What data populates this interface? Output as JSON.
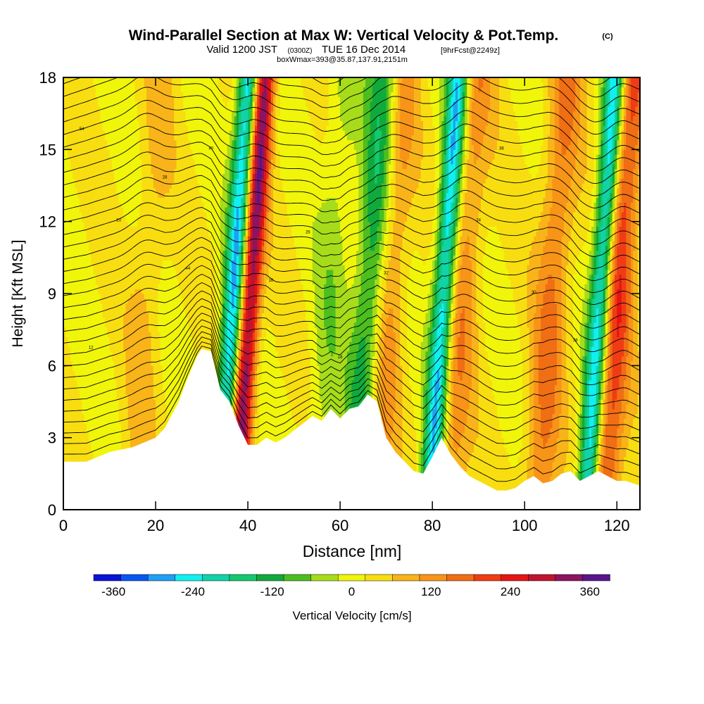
{
  "header": {
    "title": "Wind-Parallel Section at Max W: Vertical Velocity & Pot.Temp.",
    "title_mark": "(C)",
    "valid_prefix": "Valid 1200 JST",
    "valid_utc": "(0300Z)",
    "valid_date": "TUE 16 Dec 2014",
    "forecast": "[9hrFcst@2249z]",
    "boxwmax": "boxWmax=393@35.87,137.91,2151m"
  },
  "chart_data": {
    "type": "heatmap",
    "xlabel": "Distance [nm]",
    "ylabel": "Height [Kft MSL]",
    "xlim": [
      0,
      125
    ],
    "ylim": [
      0,
      18
    ],
    "x_ticks": [
      "0",
      "20",
      "40",
      "60",
      "80",
      "100",
      "120"
    ],
    "y_ticks": [
      "0",
      "3",
      "6",
      "9",
      "12",
      "15",
      "18"
    ],
    "x_tick_values": [
      0,
      20,
      40,
      60,
      80,
      100,
      120
    ],
    "y_tick_values": [
      0,
      3,
      6,
      9,
      12,
      15,
      18
    ],
    "terrain": {
      "x": [
        0,
        5,
        10,
        15,
        20,
        22,
        25,
        27,
        29,
        30,
        32,
        34,
        36,
        38,
        40,
        42,
        44,
        46,
        48,
        50,
        52,
        54,
        56,
        58,
        60,
        62,
        64,
        66,
        68,
        70,
        72,
        74,
        76,
        78,
        80,
        82,
        84,
        86,
        88,
        90,
        92,
        94,
        96,
        98,
        100,
        102,
        104,
        106,
        108,
        110,
        112,
        114,
        116,
        118,
        120,
        122,
        125
      ],
      "height_kft": [
        2.0,
        2.0,
        2.4,
        2.6,
        3.0,
        3.4,
        4.5,
        5.5,
        6.4,
        6.7,
        6.6,
        5.0,
        4.5,
        3.5,
        2.7,
        2.7,
        3.0,
        2.8,
        3.0,
        3.3,
        3.6,
        3.9,
        3.7,
        4.2,
        3.8,
        4.2,
        4.3,
        4.8,
        4.5,
        3.0,
        2.4,
        2.0,
        1.6,
        1.5,
        2.2,
        3.0,
        2.3,
        1.8,
        1.4,
        1.2,
        1.0,
        0.8,
        0.8,
        0.9,
        1.2,
        1.4,
        1.1,
        1.2,
        1.5,
        1.6,
        1.2,
        1.4,
        1.6,
        1.4,
        1.2,
        1.2,
        1.0
      ]
    },
    "w_max_cm_s": 393,
    "updrafts": [
      {
        "x": 40.5,
        "w": 330
      },
      {
        "x": 18,
        "w": 50
      },
      {
        "x": 70,
        "w": 150
      },
      {
        "x": 86.5,
        "w": 110
      },
      {
        "x": 106,
        "w": 130
      },
      {
        "x": 120,
        "w": 200
      }
    ],
    "downdrafts": [
      {
        "x": 37.0,
        "w": -300
      },
      {
        "x": 67,
        "w": -200
      },
      {
        "x": 82.5,
        "w": -300
      },
      {
        "x": 116.5,
        "w": -320
      },
      {
        "x": 58,
        "w": -60
      }
    ],
    "theta_labels": [
      "54",
      "40",
      "28",
      "16",
      "26",
      "32",
      "38",
      "44",
      "20",
      "12",
      "18",
      "24",
      "30",
      "36"
    ],
    "colorbar": {
      "label": "Vertical Velocity [cm/s]",
      "ticks": [
        "-360",
        "-240",
        "-120",
        "0",
        "120",
        "240",
        "360"
      ],
      "tick_values": [
        -360,
        -240,
        -120,
        0,
        120,
        240,
        360
      ],
      "min": -390,
      "max": 390,
      "colors": [
        "#0a14d6",
        "#0a55f0",
        "#1fa0f5",
        "#10f0f0",
        "#10d3a8",
        "#14c86e",
        "#10aa3c",
        "#4cbe20",
        "#a6dc1a",
        "#f0f50a",
        "#f8de10",
        "#f8b418",
        "#f89418",
        "#f06e14",
        "#f03c14",
        "#e61414",
        "#c0142e",
        "#8c1460",
        "#5a148c"
      ]
    }
  }
}
